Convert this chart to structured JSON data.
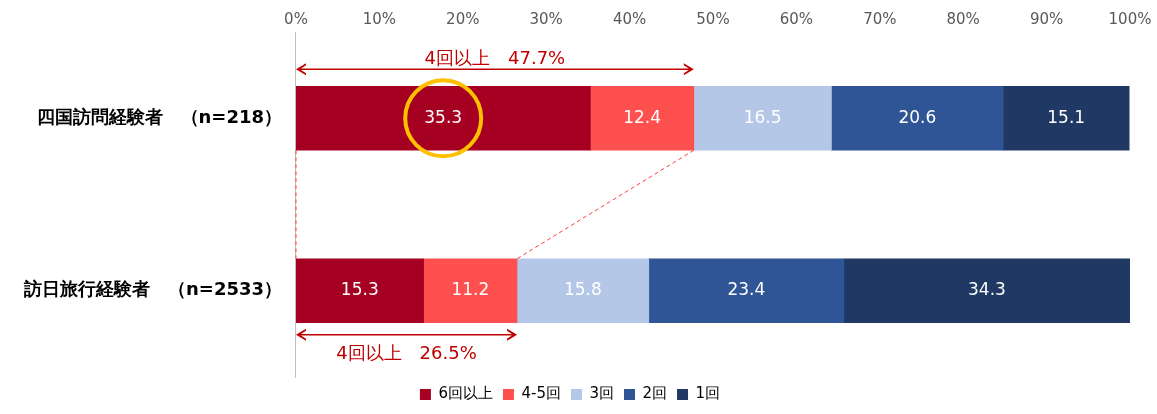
{
  "chart_data": {
    "type": "bar",
    "orientation": "horizontal",
    "stacked": true,
    "data_labels": true,
    "legend": "bottom",
    "grid": false,
    "categories": [
      "四国訪問経験者　（n=218）",
      "訪日旅行経験者　（n=2533）"
    ],
    "xlim": [
      0,
      100
    ],
    "xticks": [
      {
        "value": 0,
        "label": "0%"
      },
      {
        "value": 10,
        "label": "10%"
      },
      {
        "value": 20,
        "label": "20%"
      },
      {
        "value": 30,
        "label": "30%"
      },
      {
        "value": 40,
        "label": "40%"
      },
      {
        "value": 50,
        "label": "50%"
      },
      {
        "value": 60,
        "label": "60%"
      },
      {
        "value": 70,
        "label": "70%"
      },
      {
        "value": 80,
        "label": "80%"
      },
      {
        "value": 90,
        "label": "90%"
      },
      {
        "value": 100,
        "label": "100%"
      }
    ],
    "series": [
      {
        "name": "6回以上",
        "color": "#a50021",
        "values": [
          35.3,
          15.3
        ]
      },
      {
        "name": "4-5回",
        "color": "#ff5050",
        "values": [
          12.4,
          11.2
        ]
      },
      {
        "name": "3回",
        "color": "#b4c7e7",
        "values": [
          16.5,
          15.8
        ]
      },
      {
        "name": "2回",
        "color": "#2f5597",
        "values": [
          20.6,
          23.4
        ]
      },
      {
        "name": "1回",
        "color": "#203864",
        "values": [
          15.1,
          34.3
        ]
      }
    ],
    "annotations": [
      "4回以上　47.7%",
      "4回以上　26.5%"
    ]
  }
}
